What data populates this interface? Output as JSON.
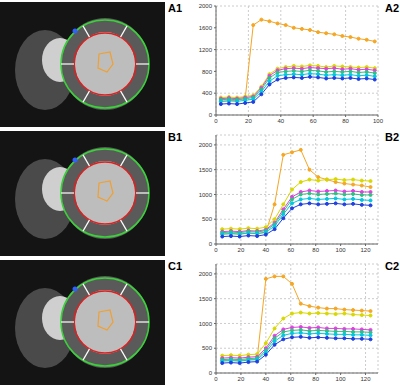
{
  "chart_data": [
    {
      "type": "line",
      "title": "A2",
      "x": [
        3,
        8,
        13,
        18,
        23,
        28,
        33,
        38,
        43,
        48,
        53,
        58,
        63,
        68,
        73,
        78,
        83,
        88,
        93,
        98
      ],
      "xlim": [
        0,
        100
      ],
      "xticks": [
        0,
        20,
        40,
        60,
        80,
        100
      ],
      "ylim": [
        0,
        2000
      ],
      "yticks": [
        0,
        400,
        800,
        1200,
        1600,
        2000
      ],
      "grid": true,
      "series": [
        {
          "color": "#f5a623",
          "marker": "circle",
          "values": [
            250,
            260,
            270,
            300,
            1650,
            1750,
            1720,
            1680,
            1650,
            1600,
            1580,
            1560,
            1520,
            1500,
            1480,
            1450,
            1430,
            1400,
            1380,
            1350
          ]
        },
        {
          "color": "#d8d800",
          "marker": "circle",
          "values": [
            320,
            330,
            320,
            340,
            360,
            520,
            750,
            850,
            880,
            900,
            890,
            910,
            900,
            880,
            900,
            890,
            880,
            870,
            880,
            860
          ]
        },
        {
          "color": "#e040e0",
          "marker": "circle",
          "values": [
            300,
            310,
            300,
            320,
            340,
            500,
            720,
            820,
            850,
            860,
            850,
            870,
            860,
            850,
            860,
            840,
            850,
            830,
            840,
            820
          ]
        },
        {
          "color": "#30c080",
          "marker": "circle",
          "values": [
            280,
            290,
            280,
            300,
            320,
            470,
            680,
            780,
            800,
            810,
            800,
            820,
            810,
            790,
            800,
            790,
            800,
            780,
            790,
            770
          ]
        },
        {
          "color": "#00c8e0",
          "marker": "circle",
          "values": [
            250,
            260,
            250,
            270,
            290,
            430,
            620,
            720,
            740,
            750,
            740,
            760,
            750,
            730,
            740,
            730,
            740,
            720,
            730,
            710
          ]
        },
        {
          "color": "#2040e0",
          "marker": "circle",
          "values": [
            200,
            210,
            200,
            220,
            240,
            380,
            560,
            650,
            680,
            690,
            680,
            700,
            690,
            670,
            680,
            670,
            680,
            660,
            670,
            650
          ]
        }
      ]
    },
    {
      "type": "line",
      "title": "B2",
      "x": [
        5,
        12,
        19,
        26,
        33,
        40,
        47,
        54,
        61,
        68,
        75,
        82,
        89,
        96,
        103,
        110,
        117,
        124
      ],
      "xlim": [
        0,
        130
      ],
      "xticks": [
        0,
        20,
        40,
        60,
        80,
        100,
        120
      ],
      "ylim": [
        0,
        2200
      ],
      "yticks": [
        0,
        500,
        1000,
        1500,
        2000
      ],
      "grid": true,
      "series": [
        {
          "color": "#f5a623",
          "marker": "circle",
          "values": [
            200,
            210,
            200,
            220,
            210,
            230,
            800,
            1800,
            1850,
            1900,
            1500,
            1350,
            1300,
            1250,
            1220,
            1200,
            1180,
            1150
          ]
        },
        {
          "color": "#d8d800",
          "marker": "circle",
          "values": [
            300,
            310,
            300,
            320,
            310,
            340,
            500,
            800,
            1100,
            1250,
            1300,
            1280,
            1300,
            1310,
            1290,
            1300,
            1280,
            1270
          ]
        },
        {
          "color": "#e040e0",
          "marker": "circle",
          "values": [
            250,
            260,
            250,
            270,
            260,
            290,
            430,
            700,
            950,
            1050,
            1080,
            1060,
            1070,
            1080,
            1060,
            1070,
            1050,
            1050
          ]
        },
        {
          "color": "#30c080",
          "marker": "circle",
          "values": [
            230,
            240,
            230,
            250,
            240,
            270,
            400,
            650,
            900,
            1000,
            1020,
            1000,
            1010,
            1020,
            1000,
            1010,
            990,
            990
          ]
        },
        {
          "color": "#00c8e0",
          "marker": "circle",
          "values": [
            200,
            210,
            200,
            220,
            210,
            240,
            360,
            600,
            820,
            900,
            920,
            900,
            910,
            920,
            900,
            910,
            890,
            880
          ]
        },
        {
          "color": "#2040e0",
          "marker": "circle",
          "values": [
            150,
            160,
            150,
            170,
            160,
            190,
            300,
            520,
            720,
            800,
            820,
            800,
            810,
            820,
            800,
            810,
            790,
            780
          ]
        }
      ]
    },
    {
      "type": "line",
      "title": "C2",
      "x": [
        5,
        12,
        19,
        26,
        33,
        40,
        47,
        54,
        61,
        68,
        75,
        82,
        89,
        96,
        103,
        110,
        117,
        124
      ],
      "xlim": [
        0,
        130
      ],
      "xticks": [
        0,
        20,
        40,
        60,
        80,
        100,
        120
      ],
      "ylim": [
        0,
        2200
      ],
      "yticks": [
        0,
        500,
        1000,
        1500,
        2000
      ],
      "grid": true,
      "series": [
        {
          "color": "#f5a623",
          "marker": "circle",
          "values": [
            250,
            260,
            250,
            270,
            280,
            1900,
            1950,
            1950,
            1800,
            1400,
            1350,
            1320,
            1300,
            1300,
            1280,
            1270,
            1260,
            1250
          ]
        },
        {
          "color": "#d8d800",
          "marker": "circle",
          "values": [
            350,
            360,
            350,
            370,
            380,
            600,
            900,
            1100,
            1200,
            1220,
            1200,
            1210,
            1200,
            1190,
            1200,
            1180,
            1170,
            1160
          ]
        },
        {
          "color": "#e040e0",
          "marker": "circle",
          "values": [
            300,
            310,
            300,
            320,
            330,
            500,
            750,
            880,
            920,
            930,
            910,
            920,
            900,
            900,
            890,
            890,
            880,
            870
          ]
        },
        {
          "color": "#30c080",
          "marker": "circle",
          "values": [
            270,
            280,
            270,
            290,
            300,
            460,
            700,
            830,
            860,
            870,
            850,
            860,
            850,
            840,
            840,
            830,
            830,
            820
          ]
        },
        {
          "color": "#00c8e0",
          "marker": "circle",
          "values": [
            240,
            250,
            240,
            260,
            270,
            420,
            640,
            760,
            800,
            810,
            790,
            800,
            790,
            780,
            780,
            770,
            770,
            760
          ]
        },
        {
          "color": "#2040e0",
          "marker": "circle",
          "values": [
            200,
            210,
            200,
            220,
            230,
            370,
            570,
            680,
            720,
            730,
            710,
            720,
            710,
            700,
            700,
            690,
            690,
            680
          ]
        }
      ]
    }
  ],
  "images": [
    {
      "label": "A1"
    },
    {
      "label": "B1"
    },
    {
      "label": "C1"
    }
  ]
}
